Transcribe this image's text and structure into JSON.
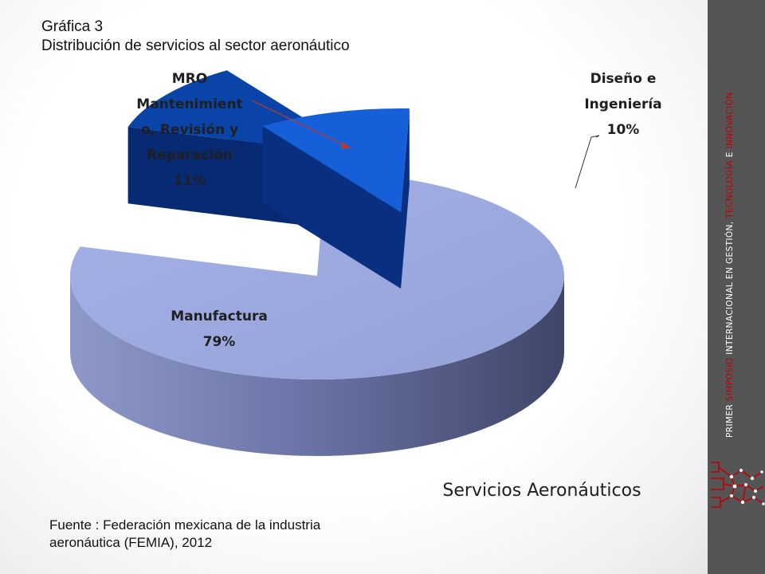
{
  "heading": {
    "line1": "Gráfica 3",
    "line2": "Distribución de servicios al sector aeronáutico"
  },
  "source": {
    "line1": "Fuente : Federación mexicana de la industria",
    "line2": "aeronáutica (FEMIA), 2012"
  },
  "sidebar": {
    "part1": "PRIMER ",
    "part2": "SIMPOSIO",
    "part3": " INTERNACIONAL EN GESTIÓN, ",
    "part4": "TECNOLOGÍA",
    "part5": " E ",
    "part6": "INNOVACIÓN",
    "logo_icon": "symposium-logo-icon"
  },
  "colors": {
    "manufactura": "#9aa8dc",
    "mro": "#0a44a8",
    "diseno": "#1560d8",
    "accent_red": "#c00000",
    "sidebar_bg": "#555555"
  },
  "chart_data": {
    "type": "pie",
    "style": "3d-exploded",
    "title": "Servicios Aeronáuticos",
    "slices": [
      {
        "name": "Manufactura",
        "value": 79,
        "label_lines": [
          "Manufactura",
          "79%"
        ],
        "color": "#9aa8dc"
      },
      {
        "name": "MRO Mantenimiento, Revisión y Reparación",
        "value": 11,
        "label_lines": [
          "MRO",
          "Mantenimient",
          "o, Revisión y",
          "Reparación",
          "11%"
        ],
        "color": "#0a44a8"
      },
      {
        "name": "Diseño e Ingeniería",
        "value": 10,
        "label_lines": [
          "Diseño e",
          "Ingeniería",
          "10%"
        ],
        "color": "#1560d8"
      }
    ]
  }
}
